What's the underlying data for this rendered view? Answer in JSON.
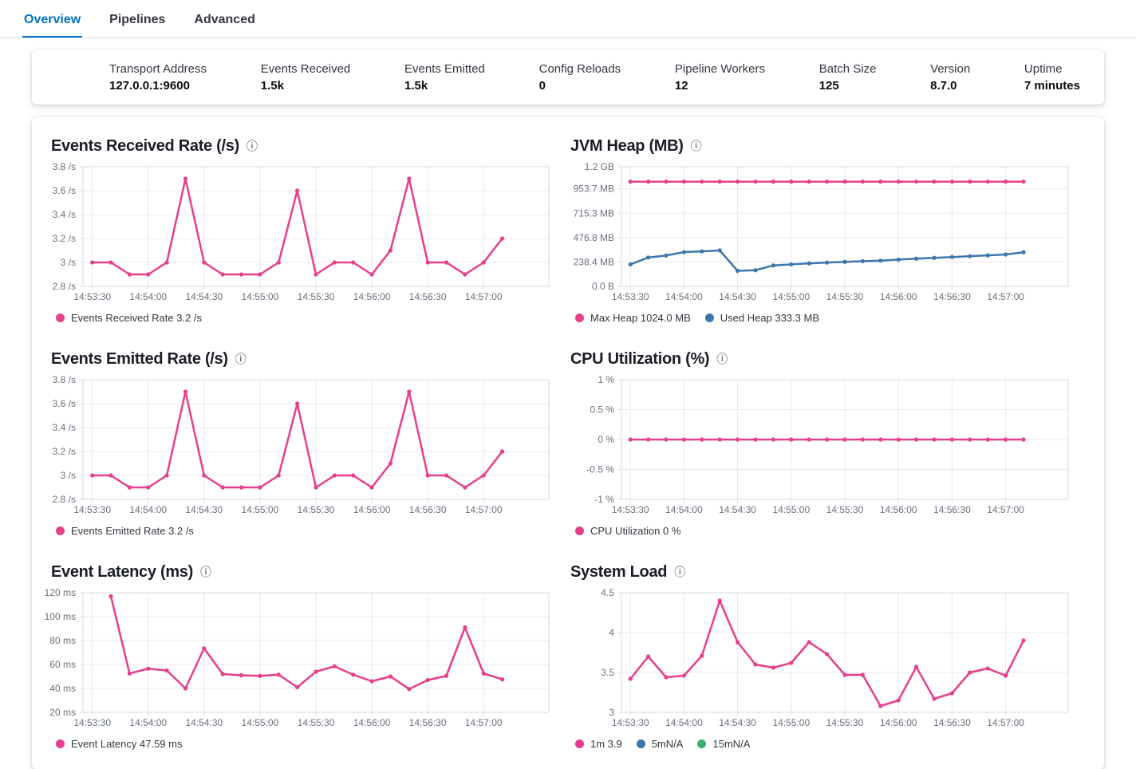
{
  "tabs": [
    {
      "label": "Overview",
      "active": true
    },
    {
      "label": "Pipelines",
      "active": false
    },
    {
      "label": "Advanced",
      "active": false
    }
  ],
  "stats": [
    {
      "label": "Transport Address",
      "value": "127.0.0.1:9600"
    },
    {
      "label": "Events Received",
      "value": "1.5k"
    },
    {
      "label": "Events Emitted",
      "value": "1.5k"
    },
    {
      "label": "Config Reloads",
      "value": "0"
    },
    {
      "label": "Pipeline Workers",
      "value": "12"
    },
    {
      "label": "Batch Size",
      "value": "125"
    },
    {
      "label": "Version",
      "value": "8.7.0"
    },
    {
      "label": "Uptime",
      "value": "7 minutes"
    }
  ],
  "icons": {
    "info": "ⓘ"
  },
  "colors": {
    "pink": "#E63F8C",
    "blue": "#3D76AD",
    "green": "#35B368",
    "accent": "#0071C2",
    "grid": "#E8E9ED",
    "axis": "#D7DAE0",
    "tick_text": "#68707C"
  },
  "chart_data": [
    {
      "type": "line",
      "title": "Events Received Rate (/s)",
      "y_ticks": [
        {
          "value": 2.8,
          "label": "2.8 /s"
        },
        {
          "value": 3.0,
          "label": "3 /s"
        },
        {
          "value": 3.2,
          "label": "3.2 /s"
        },
        {
          "value": 3.4,
          "label": "3.4 /s"
        },
        {
          "value": 3.6,
          "label": "3.6 /s"
        },
        {
          "value": 3.8,
          "label": "3.8 /s"
        }
      ],
      "x_ticks": [
        0,
        3,
        6,
        9,
        12,
        15,
        18,
        21
      ],
      "x_tick_labels": [
        "14:53:30",
        "14:54:00",
        "14:54:30",
        "14:55:00",
        "14:55:30",
        "14:56:00",
        "14:56:30",
        "14:57:00"
      ],
      "series": [
        {
          "name": "Events Received Rate",
          "color_key": "pink",
          "start_index": 0,
          "values": [
            3,
            3,
            2.9,
            2.9,
            3,
            3.7,
            3,
            2.9,
            2.9,
            2.9,
            3,
            3.6,
            2.9,
            3,
            3,
            2.9,
            3.1,
            3.7,
            3,
            3,
            2.9,
            3,
            3.2
          ]
        }
      ],
      "legend": [
        {
          "color_key": "pink",
          "label": "Events Received Rate 3.2 /s"
        }
      ]
    },
    {
      "type": "line",
      "title": "JVM Heap (MB)",
      "y_ticks": [
        {
          "value": 0,
          "label": "0.0 B"
        },
        {
          "value": 238.4,
          "label": "238.4 MB"
        },
        {
          "value": 476.8,
          "label": "476.8 MB"
        },
        {
          "value": 715.3,
          "label": "715.3 MB"
        },
        {
          "value": 953.7,
          "label": "953.7 MB"
        },
        {
          "value": 1170,
          "label": "1.2 GB"
        }
      ],
      "x_ticks": [
        0,
        3,
        6,
        9,
        12,
        15,
        18,
        21
      ],
      "x_tick_labels": [
        "14:53:30",
        "14:54:00",
        "14:54:30",
        "14:55:00",
        "14:55:30",
        "14:56:00",
        "14:56:30",
        "14:57:00"
      ],
      "series": [
        {
          "name": "Max Heap",
          "color_key": "pink",
          "start_index": 0,
          "values": [
            1024,
            1024,
            1024,
            1024,
            1024,
            1024,
            1024,
            1024,
            1024,
            1024,
            1024,
            1024,
            1024,
            1024,
            1024,
            1024,
            1024,
            1024,
            1024,
            1024,
            1024,
            1024,
            1024
          ]
        },
        {
          "name": "Used Heap",
          "color_key": "blue",
          "start_index": 0,
          "values": [
            215,
            282,
            302,
            335,
            342,
            352,
            152,
            158,
            205,
            215,
            225,
            233,
            240,
            246,
            252,
            262,
            271,
            279,
            287,
            295,
            303,
            312,
            333.3
          ]
        }
      ],
      "legend": [
        {
          "color_key": "pink",
          "label": "Max Heap 1024.0 MB"
        },
        {
          "color_key": "blue",
          "label": "Used Heap 333.3 MB"
        }
      ]
    },
    {
      "type": "line",
      "title": "Events Emitted Rate (/s)",
      "y_ticks": [
        {
          "value": 2.8,
          "label": "2.8 /s"
        },
        {
          "value": 3.0,
          "label": "3 /s"
        },
        {
          "value": 3.2,
          "label": "3.2 /s"
        },
        {
          "value": 3.4,
          "label": "3.4 /s"
        },
        {
          "value": 3.6,
          "label": "3.6 /s"
        },
        {
          "value": 3.8,
          "label": "3.8 /s"
        }
      ],
      "x_ticks": [
        0,
        3,
        6,
        9,
        12,
        15,
        18,
        21
      ],
      "x_tick_labels": [
        "14:53:30",
        "14:54:00",
        "14:54:30",
        "14:55:00",
        "14:55:30",
        "14:56:00",
        "14:56:30",
        "14:57:00"
      ],
      "series": [
        {
          "name": "Events Emitted Rate",
          "color_key": "pink",
          "start_index": 0,
          "values": [
            3,
            3,
            2.9,
            2.9,
            3,
            3.7,
            3,
            2.9,
            2.9,
            2.9,
            3,
            3.6,
            2.9,
            3,
            3,
            2.9,
            3.1,
            3.7,
            3,
            3,
            2.9,
            3,
            3.2
          ]
        }
      ],
      "legend": [
        {
          "color_key": "pink",
          "label": "Events Emitted Rate 3.2 /s"
        }
      ]
    },
    {
      "type": "line",
      "title": "CPU Utilization (%)",
      "y_ticks": [
        {
          "value": -1,
          "label": "-1 %"
        },
        {
          "value": -0.5,
          "label": "-0.5 %"
        },
        {
          "value": 0,
          "label": "0 %"
        },
        {
          "value": 0.5,
          "label": "0.5 %"
        },
        {
          "value": 1,
          "label": "1 %"
        }
      ],
      "x_ticks": [
        0,
        3,
        6,
        9,
        12,
        15,
        18,
        21
      ],
      "x_tick_labels": [
        "14:53:30",
        "14:54:00",
        "14:54:30",
        "14:55:00",
        "14:55:30",
        "14:56:00",
        "14:56:30",
        "14:57:00"
      ],
      "series": [
        {
          "name": "CPU Utilization",
          "color_key": "pink",
          "start_index": 0,
          "values": [
            0,
            0,
            0,
            0,
            0,
            0,
            0,
            0,
            0,
            0,
            0,
            0,
            0,
            0,
            0,
            0,
            0,
            0,
            0,
            0,
            0,
            0,
            0
          ]
        }
      ],
      "legend": [
        {
          "color_key": "pink",
          "label": "CPU Utilization 0 %"
        }
      ]
    },
    {
      "type": "line",
      "title": "Event Latency (ms)",
      "y_ticks": [
        {
          "value": 20,
          "label": "20 ms"
        },
        {
          "value": 40,
          "label": "40 ms"
        },
        {
          "value": 60,
          "label": "60 ms"
        },
        {
          "value": 80,
          "label": "80 ms"
        },
        {
          "value": 100,
          "label": "100 ms"
        },
        {
          "value": 120,
          "label": "120 ms"
        }
      ],
      "x_ticks": [
        0,
        3,
        6,
        9,
        12,
        15,
        18,
        21
      ],
      "x_tick_labels": [
        "14:53:30",
        "14:54:00",
        "14:54:30",
        "14:55:00",
        "14:55:30",
        "14:56:00",
        "14:56:30",
        "14:57:00"
      ],
      "series": [
        {
          "name": "Event Latency",
          "color_key": "pink",
          "start_index": 1,
          "values": [
            117,
            52.5,
            56.5,
            55,
            40,
            73.5,
            52,
            51,
            50.5,
            51.5,
            41,
            54,
            58.5,
            51.5,
            46,
            50,
            39.5,
            47,
            50.5,
            91,
            52.5,
            47.59
          ]
        }
      ],
      "legend": [
        {
          "color_key": "pink",
          "label": "Event Latency 47.59 ms"
        }
      ]
    },
    {
      "type": "line",
      "title": "System Load",
      "y_ticks": [
        {
          "value": 3,
          "label": "3"
        },
        {
          "value": 3.5,
          "label": "3.5"
        },
        {
          "value": 4,
          "label": "4"
        },
        {
          "value": 4.5,
          "label": "4.5"
        }
      ],
      "x_ticks": [
        0,
        3,
        6,
        9,
        12,
        15,
        18,
        21
      ],
      "x_tick_labels": [
        "14:53:30",
        "14:54:00",
        "14:54:30",
        "14:55:00",
        "14:55:30",
        "14:56:00",
        "14:56:30",
        "14:57:00"
      ],
      "series": [
        {
          "name": "1m",
          "color_key": "pink",
          "start_index": 0,
          "values": [
            3.42,
            3.7,
            3.44,
            3.46,
            3.71,
            4.4,
            3.88,
            3.6,
            3.56,
            3.62,
            3.88,
            3.73,
            3.47,
            3.47,
            3.08,
            3.15,
            3.57,
            3.17,
            3.24,
            3.5,
            3.55,
            3.46,
            3.9
          ]
        }
      ],
      "legend": [
        {
          "color_key": "pink",
          "label": "1m 3.9"
        },
        {
          "color_key": "blue",
          "label": "5mN/A"
        },
        {
          "color_key": "green",
          "label": "15mN/A"
        }
      ]
    }
  ]
}
